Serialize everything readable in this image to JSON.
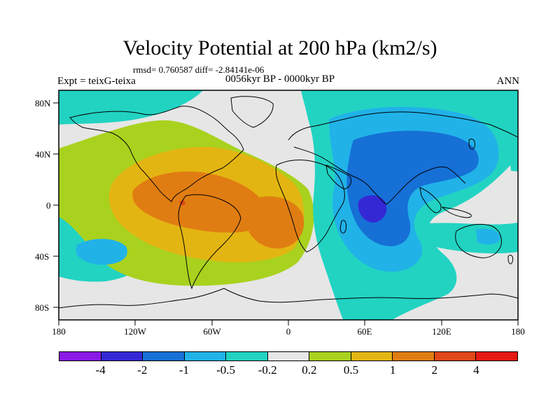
{
  "title": "Velocity Potential at 200 hPa (km2/s)",
  "stats": "rmsd= 0.760587 diff= -2.84141e-06",
  "experiment": "Expt = teixG-teixa",
  "period": "0056kyr BP - 0000kyr BP",
  "season": "ANN",
  "map": {
    "projection": "cylindrical equidistant",
    "lat_range": [
      -90,
      90
    ],
    "lon_range": [
      -180,
      180
    ],
    "lat_ticks": [
      "80N",
      "40N",
      "0",
      "40S",
      "80S"
    ],
    "lon_ticks": [
      "180",
      "120W",
      "60W",
      "0",
      "60E",
      "120E",
      "180"
    ]
  },
  "colorbar": {
    "colors": [
      "#8a1ae6",
      "#3428d4",
      "#1670d6",
      "#21b2e8",
      "#22d3c2",
      "#e6e6e6",
      "#a9d21f",
      "#e3b512",
      "#e07d12",
      "#e0471a",
      "#e51a12"
    ],
    "labels": [
      "-4",
      "-2",
      "-1",
      "-0.5",
      "-0.2",
      "0.2",
      "0.5",
      "1",
      "2",
      "4"
    ]
  },
  "colors": {
    "neutral": "#e6e6e6",
    "teal": "#22d3c2",
    "light_blue": "#21b2e8",
    "blue": "#1670d6",
    "dark_blue": "#3428d4",
    "yellow_green": "#a9d21f",
    "yellow": "#e3b512",
    "orange": "#e07d12",
    "red_orange": "#e0471a"
  }
}
